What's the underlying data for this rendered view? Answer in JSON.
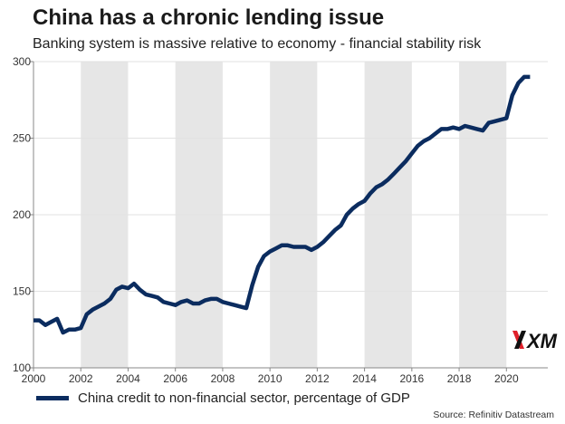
{
  "title": "China has a chronic lending issue",
  "subtitle": "Banking system is massive relative to economy - financial stability risk",
  "source": "Source: Refinitiv Datastream",
  "logo_text": "XM",
  "colors": {
    "line": "#0b2c5f",
    "band": "#e6e6e6",
    "grid": "#e2e2e2",
    "logo_accent": "#e0202a"
  },
  "chart_data": {
    "type": "line",
    "title": "China has a chronic lending issue",
    "subtitle": "Banking system is massive relative to economy - financial stability risk",
    "xlabel": "",
    "ylabel": "",
    "xlim": [
      2000,
      2021.75
    ],
    "ylim": [
      100,
      300
    ],
    "x_ticks": [
      2000,
      2002,
      2004,
      2006,
      2008,
      2010,
      2012,
      2014,
      2016,
      2018,
      2020
    ],
    "y_ticks": [
      100,
      150,
      200,
      250,
      300
    ],
    "shaded_bands": [
      [
        2002,
        2004
      ],
      [
        2006,
        2008
      ],
      [
        2010,
        2012
      ],
      [
        2014,
        2016
      ],
      [
        2018,
        2020
      ]
    ],
    "grid": true,
    "legend_position": "bottom-left",
    "series": [
      {
        "name": "China credit to non-financial sector, percentage of GDP",
        "x": [
          2000,
          2000.25,
          2000.5,
          2000.75,
          2001,
          2001.25,
          2001.5,
          2001.75,
          2002,
          2002.25,
          2002.5,
          2002.75,
          2003,
          2003.25,
          2003.5,
          2003.75,
          2004,
          2004.25,
          2004.5,
          2004.75,
          2005,
          2005.25,
          2005.5,
          2005.75,
          2006,
          2006.25,
          2006.5,
          2006.75,
          2007,
          2007.25,
          2007.5,
          2007.75,
          2008,
          2008.25,
          2008.5,
          2008.75,
          2009,
          2009.25,
          2009.5,
          2009.75,
          2010,
          2010.25,
          2010.5,
          2010.75,
          2011,
          2011.25,
          2011.5,
          2011.75,
          2012,
          2012.25,
          2012.5,
          2012.75,
          2013,
          2013.25,
          2013.5,
          2013.75,
          2014,
          2014.25,
          2014.5,
          2014.75,
          2015,
          2015.25,
          2015.5,
          2015.75,
          2016,
          2016.25,
          2016.5,
          2016.75,
          2017,
          2017.25,
          2017.5,
          2017.75,
          2018,
          2018.25,
          2018.5,
          2018.75,
          2019,
          2019.25,
          2019.5,
          2019.75,
          2020,
          2020.25,
          2020.5,
          2020.75,
          2021
        ],
        "values": [
          131,
          131,
          128,
          130,
          132,
          123,
          125,
          125,
          126,
          135,
          138,
          140,
          142,
          145,
          151,
          153,
          152,
          155,
          151,
          148,
          147,
          146,
          143,
          142,
          141,
          143,
          144,
          142,
          142,
          144,
          145,
          145,
          143,
          142,
          141,
          140,
          139,
          154,
          166,
          173,
          176,
          178,
          180,
          180,
          179,
          179,
          179,
          177,
          179,
          182,
          186,
          190,
          193,
          200,
          204,
          207,
          209,
          214,
          218,
          220,
          223,
          227,
          231,
          235,
          240,
          245,
          248,
          250,
          253,
          256,
          256,
          257,
          256,
          258,
          257,
          256,
          255,
          260,
          261,
          262,
          263,
          278,
          286,
          290,
          290
        ]
      }
    ]
  }
}
